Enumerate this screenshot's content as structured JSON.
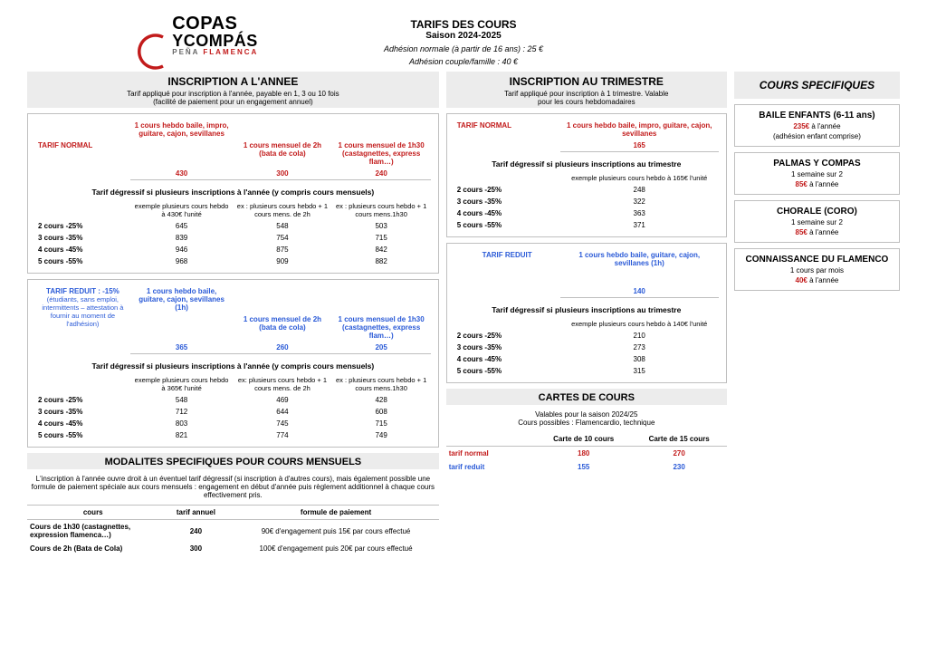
{
  "header": {
    "title": "TARIFS DES COURS",
    "season": "Saison 2024-2025",
    "adh_norm": "Adhésion normale (à partir de 16 ans) : 25 €",
    "adh_fam": "Adhésion couple/famille : 40 €"
  },
  "logo": {
    "l1": "COPAS",
    "l2": "YCOMPÁS",
    "l3a": "PEÑA ",
    "l3b": "FLAMENCA"
  },
  "annee": {
    "head": "INSCRIPTION A L'ANNEE",
    "sub1": "Tarif appliqué pour inscription à l'année, payable en 1, 3 ou 10 fois",
    "sub2": "(facilité de paiement pour un engagement annuel)",
    "normal": {
      "rowlbl": "TARIF NORMAL",
      "h1": "1 cours hebdo baile, impro, guitare, cajon, sevillanes",
      "h2": "1 cours mensuel de 2h (bata de cola)",
      "h3": "1 cours mensuel de 1h30 (castagnettes, express flam…)",
      "p1": "430",
      "p2": "300",
      "p3": "240",
      "degr": "Tarif dégressif si plusieurs inscriptions à l'année (y compris cours mensuels)",
      "ex1": "exemple plusieurs cours hebdo à 430€ l'unité",
      "ex2": "ex : plusieurs cours hebdo + 1 cours mens. de 2h",
      "ex3": "ex : plusieurs cours hebdo + 1 cours mens.1h30",
      "rows": [
        {
          "l": "2 cours -25%",
          "a": "645",
          "b": "548",
          "c": "503"
        },
        {
          "l": "3 cours -35%",
          "a": "839",
          "b": "754",
          "c": "715"
        },
        {
          "l": "4 cours -45%",
          "a": "946",
          "b": "875",
          "c": "842"
        },
        {
          "l": "5 cours -55%",
          "a": "968",
          "b": "909",
          "c": "882"
        }
      ]
    },
    "reduit": {
      "rowlbl": "TARIF REDUIT : -15%",
      "rowlbl2": "(étudiants, sans emploi, intermittents – attestation à fournir au moment de l'adhésion)",
      "h1": "1 cours hebdo baile, guitare, cajon, sevillanes (1h)",
      "h2": "1 cours mensuel de 2h (bata de cola)",
      "h3": "1 cours mensuel de 1h30 (castagnettes, express flam…)",
      "p1": "365",
      "p2": "260",
      "p3": "205",
      "degr": "Tarif dégressif si plusieurs inscriptions à l'année (y compris cours mensuels)",
      "ex1": "exemple plusieurs cours hebdo à 365€ l'unité",
      "ex2": "ex: plusieurs cours hebdo + 1 cours mens. de 2h",
      "ex3": "ex : plusieurs cours hebdo + 1 cours mens.1h30",
      "rows": [
        {
          "l": "2 cours -25%",
          "a": "548",
          "b": "469",
          "c": "428"
        },
        {
          "l": "3 cours -35%",
          "a": "712",
          "b": "644",
          "c": "608"
        },
        {
          "l": "4 cours -45%",
          "a": "803",
          "b": "745",
          "c": "715"
        },
        {
          "l": "5 cours -55%",
          "a": "821",
          "b": "774",
          "c": "749"
        }
      ]
    }
  },
  "trim": {
    "head": "INSCRIPTION AU TRIMESTRE",
    "sub1": "Tarif appliqué pour inscription à 1 trimestre. Valable",
    "sub2": "pour les cours hebdomadaires",
    "normal": {
      "rowlbl": "TARIF NORMAL",
      "h1": "1 cours hebdo baile, impro, guitare, cajon, sevillanes",
      "p1": "165",
      "degr": "Tarif dégressif si plusieurs inscriptions au trimestre",
      "ex1": "exemple plusieurs cours hebdo à 165€ l'unité",
      "rows": [
        {
          "l": "2 cours -25%",
          "a": "248"
        },
        {
          "l": "3 cours -35%",
          "a": "322"
        },
        {
          "l": "4 cours -45%",
          "a": "363"
        },
        {
          "l": "5 cours -55%",
          "a": "371"
        }
      ]
    },
    "reduit": {
      "rowlbl": "TARIF REDUIT",
      "h1": "1 cours hebdo baile, guitare, cajon, sevillanes (1h)",
      "p1": "140",
      "degr": "Tarif dégressif si plusieurs inscriptions au trimestre",
      "ex1": "exemple plusieurs cours hebdo à 140€ l'unité",
      "rows": [
        {
          "l": "2 cours -25%",
          "a": "210"
        },
        {
          "l": "3 cours -35%",
          "a": "273"
        },
        {
          "l": "4 cours -45%",
          "a": "308"
        },
        {
          "l": "5 cours -55%",
          "a": "315"
        }
      ]
    }
  },
  "specific": {
    "head": "COURS SPECIFIQUES",
    "boxes": [
      {
        "t": "BAILE ENFANTS (6-11 ans)",
        "p": "235€",
        "ps": " à l'année",
        "note": "(adhésion enfant comprise)",
        "color": "red"
      },
      {
        "t": "PALMAS Y COMPAS",
        "sub": "1 semaine sur 2",
        "p": "85€",
        "ps": " à l'année",
        "color": "red"
      },
      {
        "t": "CHORALE  (CORO)",
        "sub": "1 semaine sur 2",
        "p": "85€",
        "ps": " à l'année",
        "color": "red"
      },
      {
        "t": "CONNAISSANCE DU FLAMENCO",
        "sub": "1 cours par mois",
        "p": "40€",
        "ps": " à l'année",
        "color": "red"
      }
    ]
  },
  "modalites": {
    "head": "MODALITES SPECIFIQUES POUR COURS MENSUELS",
    "text": "L'inscription à l'année ouvre droit à un éventuel tarif dégressif (si inscription à d'autres cours), mais également possible une formule de paiement spéciale aux cours mensuels : engagement en début d'année puis règlement additionnel à chaque cours effectivement pris.",
    "cols": {
      "a": "cours",
      "b": "tarif annuel",
      "c": "formule de paiement"
    },
    "rows": [
      {
        "a": "Cours de 1h30 (castagnettes, expression flamenca…)",
        "b": "240",
        "c": "90€ d'engagement puis 15€ par cours effectué"
      },
      {
        "a": "Cours de 2h (Bata de Cola)",
        "b": "300",
        "c": "100€ d'engagement puis 20€ par cours effectué"
      }
    ]
  },
  "cartes": {
    "head": "CARTES DE COURS",
    "sub1": "Valables pour la saison 2024/25",
    "sub2": "Cours possibles : Flamencardio, technique",
    "cols": {
      "a": "",
      "b": "Carte de 10 cours",
      "c": "Carte de 15 cours"
    },
    "rows": [
      {
        "l": "tarif normal",
        "b": "180",
        "c": "270",
        "color": "red"
      },
      {
        "l": "tarif reduit",
        "b": "155",
        "c": "230",
        "color": "blue"
      }
    ]
  }
}
